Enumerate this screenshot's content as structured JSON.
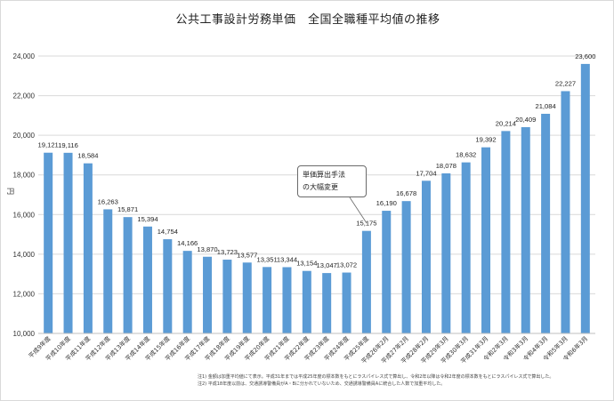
{
  "chart_data": {
    "type": "bar",
    "title": "公共工事設計労務単価　全国全職種平均値の推移",
    "ylabel": "円",
    "xlabel": "",
    "ylim": [
      10000,
      24000
    ],
    "yticks": [
      "10,000",
      "12,000",
      "14,000",
      "16,000",
      "18,000",
      "20,000",
      "22,000",
      "24,000"
    ],
    "ytick_values": [
      10000,
      12000,
      14000,
      16000,
      18000,
      20000,
      22000,
      24000
    ],
    "categories": [
      "平成9年度",
      "平成10年度",
      "平成11年度",
      "平成12年度",
      "平成13年度",
      "平成14年度",
      "平成15年度",
      "平成16年度",
      "平成17年度",
      "平成18年度",
      "平成19年度",
      "平成20年度",
      "平成21年度",
      "平成22年度",
      "平成23年度",
      "平成24年度",
      "平成25年度",
      "平成26年2月",
      "平成27年2月",
      "平成28年2月",
      "平成29年3月",
      "平成30年3月",
      "平成31年3月",
      "令和2年3月",
      "令和3年3月",
      "令和4年3月",
      "令和5年3月",
      "令和6年3月"
    ],
    "values": [
      19121,
      19116,
      18584,
      16263,
      15871,
      15394,
      14754,
      14166,
      13870,
      13723,
      13577,
      13351,
      13344,
      13154,
      13047,
      13072,
      15175,
      16190,
      16678,
      17704,
      18078,
      18632,
      19392,
      20214,
      20409,
      21084,
      22227,
      23600
    ],
    "value_labels": [
      "19,121",
      "19,116",
      "18,584",
      "16,263",
      "15,871",
      "15,394",
      "14,754",
      "14,166",
      "13,870",
      "13,723",
      "13,577",
      "13,351",
      "13,344",
      "13,154",
      "13,047",
      "13,072",
      "15,175",
      "16,190",
      "16,678",
      "17,704",
      "18,078",
      "18,632",
      "19,392",
      "20,214",
      "20,409",
      "21,084",
      "22,227",
      "23,600"
    ],
    "bar_color": "#5b9bd5",
    "grid": true,
    "annotation": {
      "lines": [
        "単価算出手法",
        "の大幅変更"
      ],
      "points_to": "平成25年度"
    }
  },
  "footnotes": [
    "注1) 金額は加重平均値にて表示。平成31年までは平成25年度の標本数をもとにラスパイレス式で算出し、令和2年以降は令和2年度の標本数をもとにラスパイレス式で算出した。",
    "注2) 平成18年度以前は、交通誘導警備員がA・Bに分かれていないため、交通誘導警備員Aに統合した人数で加重平均した。"
  ]
}
